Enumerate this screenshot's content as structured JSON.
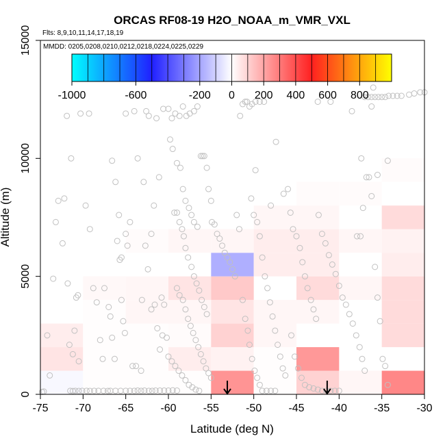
{
  "chart_data": {
    "type": "heatmap",
    "title": "ORCAS RF08-19 H2O_NOAA_m_VMR_VXL",
    "subtitle_flights": "Flts: 8,9,10,11,14,17,18,19",
    "subtitle_dates": "MMDD: 0205,0208,0210,0212,0218,0224,0225,0229",
    "xlabel": "Latitude (deg N)",
    "ylabel": "Altitude (m)",
    "xlim": [
      -75,
      -30
    ],
    "ylim": [
      0,
      15000
    ],
    "x_ticks": [
      "-75",
      "-70",
      "-65",
      "-60",
      "-55",
      "-50",
      "-45",
      "-40",
      "-35",
      "-30"
    ],
    "y_ticks": [
      "0",
      "5000",
      "10000",
      "15000"
    ],
    "colorbar": {
      "range": [
        -1000,
        1000
      ],
      "tick_labels": [
        "-1000",
        "-600",
        "-200",
        "0",
        "200",
        "400",
        "600",
        "800"
      ],
      "tick_values": [
        -1000,
        -600,
        -200,
        0,
        200,
        400,
        600,
        800
      ],
      "stops": [
        "#00ffff",
        "#2020ff",
        "#ffffff",
        "#ff2020",
        "#ffff00"
      ]
    },
    "bin_size": {
      "lat": 5,
      "alt": 1000
    },
    "cells": [
      {
        "lat": -75,
        "alt": 0,
        "value": -15
      },
      {
        "lat": -75,
        "alt": 1000,
        "value": 60
      },
      {
        "lat": -75,
        "alt": 2000,
        "value": 40
      },
      {
        "lat": -70,
        "alt": 0,
        "value": 5
      },
      {
        "lat": -70,
        "alt": 1000,
        "value": 5
      },
      {
        "lat": -70,
        "alt": 2000,
        "value": 5
      },
      {
        "lat": -70,
        "alt": 3000,
        "value": 5
      },
      {
        "lat": -70,
        "alt": 4000,
        "value": 15
      },
      {
        "lat": -65,
        "alt": 0,
        "value": 5
      },
      {
        "lat": -65,
        "alt": 1000,
        "value": 5
      },
      {
        "lat": -65,
        "alt": 2000,
        "value": 5
      },
      {
        "lat": -65,
        "alt": 3000,
        "value": 20
      },
      {
        "lat": -65,
        "alt": 4000,
        "value": 20
      },
      {
        "lat": -65,
        "alt": 6000,
        "value": 10
      },
      {
        "lat": -60,
        "alt": 0,
        "value": 5
      },
      {
        "lat": -60,
        "alt": 1000,
        "value": 40
      },
      {
        "lat": -60,
        "alt": 2000,
        "value": 10
      },
      {
        "lat": -60,
        "alt": 3000,
        "value": 20
      },
      {
        "lat": -60,
        "alt": 4000,
        "value": 60
      },
      {
        "lat": -60,
        "alt": 6000,
        "value": 20
      },
      {
        "lat": -55,
        "alt": 0,
        "value": 240
      },
      {
        "lat": -55,
        "alt": 1000,
        "value": 30
      },
      {
        "lat": -55,
        "alt": 2000,
        "value": 100
      },
      {
        "lat": -55,
        "alt": 3000,
        "value": 60
      },
      {
        "lat": -55,
        "alt": 4000,
        "value": 120
      },
      {
        "lat": -55,
        "alt": 5000,
        "value": -180
      },
      {
        "lat": -55,
        "alt": 6000,
        "value": 20
      },
      {
        "lat": -50,
        "alt": 0,
        "value": 5
      },
      {
        "lat": -50,
        "alt": 1000,
        "value": 5
      },
      {
        "lat": -50,
        "alt": 2000,
        "value": 20
      },
      {
        "lat": -50,
        "alt": 3000,
        "value": 20
      },
      {
        "lat": -50,
        "alt": 5000,
        "value": 40
      },
      {
        "lat": -50,
        "alt": 6000,
        "value": 40
      },
      {
        "lat": -50,
        "alt": 7000,
        "value": 20
      },
      {
        "lat": -45,
        "alt": 0,
        "value": 100
      },
      {
        "lat": -45,
        "alt": 1000,
        "value": 230
      },
      {
        "lat": -45,
        "alt": 3000,
        "value": 20
      },
      {
        "lat": -45,
        "alt": 4000,
        "value": 80
      },
      {
        "lat": -45,
        "alt": 5000,
        "value": 40
      },
      {
        "lat": -45,
        "alt": 6000,
        "value": 40
      },
      {
        "lat": -45,
        "alt": 7000,
        "value": 20
      },
      {
        "lat": -45,
        "alt": 8000,
        "value": 10
      },
      {
        "lat": -40,
        "alt": 0,
        "value": 20
      },
      {
        "lat": -40,
        "alt": 4000,
        "value": 20
      },
      {
        "lat": -40,
        "alt": 6000,
        "value": 20
      },
      {
        "lat": -40,
        "alt": 8000,
        "value": 10
      },
      {
        "lat": -35,
        "alt": 0,
        "value": 270
      },
      {
        "lat": -35,
        "alt": 2000,
        "value": 80
      },
      {
        "lat": -35,
        "alt": 3000,
        "value": 80
      },
      {
        "lat": -35,
        "alt": 4000,
        "value": 80
      },
      {
        "lat": -35,
        "alt": 5000,
        "value": 40
      },
      {
        "lat": -35,
        "alt": 6000,
        "value": 30
      },
      {
        "lat": -35,
        "alt": 7000,
        "value": 80
      },
      {
        "lat": -35,
        "alt": 9000,
        "value": 10
      }
    ],
    "arrows": [
      {
        "lat": -53.1
      },
      {
        "lat": -41.4
      }
    ],
    "points": [
      [
        -74.8,
        100
      ],
      [
        -74.6,
        120
      ],
      [
        -74.2,
        2500
      ],
      [
        -73.9,
        800
      ],
      [
        -73.5,
        4900
      ],
      [
        -73.2,
        7300
      ],
      [
        -72.9,
        8200
      ],
      [
        -72.4,
        6400
      ],
      [
        -72.2,
        8300
      ],
      [
        -71.8,
        4700
      ],
      [
        -71.6,
        2100
      ],
      [
        -71.2,
        1700
      ],
      [
        -71.0,
        2700
      ],
      [
        -70.8,
        4100
      ],
      [
        -70.6,
        4200
      ],
      [
        -70.5,
        1400
      ],
      [
        -70.3,
        11900
      ],
      [
        -71.9,
        11800
      ],
      [
        -69.3,
        11900
      ],
      [
        -71.4,
        10000
      ],
      [
        -71.5,
        150
      ],
      [
        -71.2,
        140
      ],
      [
        -70.9,
        150
      ],
      [
        -70.5,
        145
      ],
      [
        -70.1,
        150
      ],
      [
        -69.6,
        150
      ],
      [
        -69.2,
        145
      ],
      [
        -68.7,
        150
      ],
      [
        -68.2,
        150
      ],
      [
        -67.6,
        150
      ],
      [
        -67.1,
        145
      ],
      [
        -69.7,
        8000
      ],
      [
        -69.2,
        7000
      ],
      [
        -68.8,
        4500
      ],
      [
        -68.4,
        3900
      ],
      [
        -68.0,
        2300
      ],
      [
        -67.7,
        1500
      ],
      [
        -67.5,
        4500
      ],
      [
        -67.0,
        3700
      ],
      [
        -66.8,
        3300
      ],
      [
        -66.6,
        2400
      ],
      [
        -66.3,
        1500
      ],
      [
        -66.0,
        6500
      ],
      [
        -65.7,
        5700
      ],
      [
        -65.5,
        4000
      ],
      [
        -65.3,
        3100
      ],
      [
        -65.1,
        2600
      ],
      [
        -66.6,
        9900
      ],
      [
        -66.2,
        9000
      ],
      [
        -65.8,
        7600
      ],
      [
        -65.5,
        5800
      ],
      [
        -65.0,
        6800
      ],
      [
        -64.8,
        6300
      ],
      [
        -64.5,
        7300
      ],
      [
        -64.2,
        1200
      ],
      [
        -63.8,
        1200
      ],
      [
        -63.2,
        1000
      ],
      [
        -62.9,
        9000
      ],
      [
        -62.6,
        12000
      ],
      [
        -62.3,
        11800
      ],
      [
        -62.0,
        6800
      ],
      [
        -61.7,
        8000
      ],
      [
        -61.4,
        11700
      ],
      [
        -61.1,
        9200
      ],
      [
        -60.8,
        4100
      ],
      [
        -60.5,
        3800
      ],
      [
        -60.2,
        2400
      ],
      [
        -65.0,
        11900
      ],
      [
        -64.0,
        12000
      ],
      [
        -63.6,
        10000
      ],
      [
        -63.1,
        4000
      ],
      [
        -62.7,
        6300
      ],
      [
        -62.4,
        5300
      ],
      [
        -62.0,
        3600
      ],
      [
        -61.6,
        3800
      ],
      [
        -61.3,
        2800
      ],
      [
        -61.0,
        1900
      ],
      [
        -60.7,
        2500
      ],
      [
        -66.8,
        150
      ],
      [
        -66.2,
        150
      ],
      [
        -65.6,
        150
      ],
      [
        -65.0,
        150
      ],
      [
        -64.5,
        150
      ],
      [
        -64.0,
        150
      ],
      [
        -63.6,
        160
      ],
      [
        -63.2,
        150
      ],
      [
        -62.8,
        160
      ],
      [
        -62.3,
        150
      ],
      [
        -61.9,
        150
      ],
      [
        -61.5,
        160
      ],
      [
        -61.0,
        160
      ],
      [
        -60.5,
        160
      ],
      [
        -60.0,
        160
      ],
      [
        -59.5,
        170
      ],
      [
        -59.0,
        160
      ],
      [
        -60.6,
        12100
      ],
      [
        -60.0,
        12100
      ],
      [
        -59.6,
        11700
      ],
      [
        -59.2,
        11900
      ],
      [
        -58.7,
        11800
      ],
      [
        -58.3,
        12200
      ],
      [
        -57.9,
        11800
      ],
      [
        -57.5,
        11900
      ],
      [
        -57.0,
        12000
      ],
      [
        -56.6,
        12200
      ],
      [
        -59.8,
        10800
      ],
      [
        -59.3,
        7700
      ],
      [
        -59.0,
        7700
      ],
      [
        -58.7,
        7300
      ],
      [
        -58.4,
        7000
      ],
      [
        -58.2,
        6700
      ],
      [
        -58.0,
        6200
      ],
      [
        -57.7,
        5800
      ],
      [
        -57.3,
        5400
      ],
      [
        -57.0,
        5000
      ],
      [
        -56.7,
        4700
      ],
      [
        -56.4,
        4400
      ],
      [
        -56.1,
        4000
      ],
      [
        -55.8,
        3700
      ],
      [
        -55.5,
        3400
      ],
      [
        -59.5,
        10400
      ],
      [
        -59.0,
        9800
      ],
      [
        -58.6,
        9600
      ],
      [
        -58.3,
        8700
      ],
      [
        -58.0,
        8200
      ],
      [
        -57.6,
        7900
      ],
      [
        -57.3,
        7600
      ],
      [
        -57.0,
        7300
      ],
      [
        -56.6,
        7100
      ],
      [
        -56.2,
        10100
      ],
      [
        -56.0,
        10100
      ],
      [
        -55.8,
        10100
      ],
      [
        -55.5,
        9600
      ],
      [
        -55.3,
        8700
      ],
      [
        -55.0,
        8200
      ],
      [
        -59.0,
        4500
      ],
      [
        -58.7,
        4200
      ],
      [
        -58.3,
        4000
      ],
      [
        -58.0,
        3600
      ],
      [
        -57.7,
        3200
      ],
      [
        -57.4,
        2900
      ],
      [
        -57.1,
        2600
      ],
      [
        -56.8,
        2300
      ],
      [
        -56.5,
        2000
      ],
      [
        -56.2,
        1700
      ],
      [
        -55.9,
        1400
      ],
      [
        -55.6,
        1100
      ],
      [
        -55.3,
        900
      ],
      [
        -55.0,
        700
      ],
      [
        -60.0,
        1600
      ],
      [
        -59.6,
        1400
      ],
      [
        -59.2,
        1200
      ],
      [
        -58.8,
        1000
      ],
      [
        -58.4,
        800
      ],
      [
        -58.0,
        600
      ],
      [
        -57.6,
        400
      ],
      [
        -57.2,
        300
      ],
      [
        -56.8,
        200
      ],
      [
        -56.4,
        150
      ],
      [
        -54.9,
        7300
      ],
      [
        -54.6,
        7200
      ],
      [
        -54.3,
        6800
      ],
      [
        -54.0,
        6600
      ],
      [
        -53.7,
        6300
      ],
      [
        -53.4,
        6000
      ],
      [
        -53.1,
        5800
      ],
      [
        -52.8,
        5600
      ],
      [
        -52.5,
        5300
      ],
      [
        -52.2,
        5000
      ],
      [
        -52.0,
        7600
      ],
      [
        -51.7,
        7000
      ],
      [
        -51.3,
        4000
      ],
      [
        -51.0,
        3200
      ],
      [
        -50.7,
        2700
      ],
      [
        -50.5,
        2100
      ],
      [
        -50.2,
        1500
      ],
      [
        -49.9,
        1000
      ],
      [
        -49.6,
        700
      ],
      [
        -49.3,
        400
      ],
      [
        -49.0,
        150
      ],
      [
        -48.5,
        150
      ],
      [
        -48.0,
        150
      ],
      [
        -47.5,
        150
      ],
      [
        -51.6,
        11800
      ],
      [
        -51.3,
        12300
      ],
      [
        -51.0,
        12400
      ],
      [
        -50.8,
        12400
      ],
      [
        -50.5,
        12200
      ],
      [
        -50.2,
        12300
      ],
      [
        -49.8,
        12400
      ],
      [
        -49.3,
        12400
      ],
      [
        -48.8,
        12400
      ],
      [
        -50.3,
        8300
      ],
      [
        -50.0,
        7600
      ],
      [
        -49.6,
        7300
      ],
      [
        -49.3,
        6700
      ],
      [
        -49.0,
        5800
      ],
      [
        -48.7,
        5000
      ],
      [
        -48.4,
        4500
      ],
      [
        -48.1,
        3900
      ],
      [
        -47.8,
        3300
      ],
      [
        -47.5,
        2700
      ],
      [
        -47.2,
        2100
      ],
      [
        -46.9,
        1600
      ],
      [
        -46.6,
        1100
      ],
      [
        -46.3,
        800
      ],
      [
        -49.8,
        9500
      ],
      [
        -48.0,
        8000
      ],
      [
        -47.4,
        10700
      ],
      [
        -46.5,
        8500
      ],
      [
        -46.0,
        8700
      ],
      [
        -45.7,
        7700
      ],
      [
        -45.4,
        7000
      ],
      [
        -45.0,
        6700
      ],
      [
        -44.6,
        6200
      ],
      [
        -44.3,
        5600
      ],
      [
        -44.0,
        5000
      ],
      [
        -43.7,
        4500
      ],
      [
        -43.3,
        4000
      ],
      [
        -43.0,
        3600
      ],
      [
        -42.7,
        3200
      ],
      [
        -45.6,
        2500
      ],
      [
        -45.2,
        1600
      ],
      [
        -44.8,
        1100
      ],
      [
        -44.4,
        700
      ],
      [
        -44.0,
        400
      ],
      [
        -43.5,
        300
      ],
      [
        -43.0,
        250
      ],
      [
        -42.5,
        200
      ],
      [
        -42.0,
        150
      ],
      [
        -41.5,
        150
      ],
      [
        -41.0,
        150
      ],
      [
        -40.5,
        150
      ],
      [
        -40.0,
        150
      ],
      [
        -42.4,
        7600
      ],
      [
        -42.0,
        6800
      ],
      [
        -41.6,
        6400
      ],
      [
        -41.2,
        5900
      ],
      [
        -40.8,
        5500
      ],
      [
        -40.4,
        5100
      ],
      [
        -40.0,
        4600
      ],
      [
        -39.6,
        4100
      ],
      [
        -39.2,
        3800
      ],
      [
        -38.8,
        3400
      ],
      [
        -38.4,
        3000
      ],
      [
        -38.0,
        2500
      ],
      [
        -37.6,
        2000
      ],
      [
        -37.3,
        1500
      ],
      [
        -37.0,
        1000
      ],
      [
        -37.9,
        6700
      ],
      [
        -37.5,
        6700
      ],
      [
        -37.2,
        7900
      ],
      [
        -36.8,
        9200
      ],
      [
        -36.5,
        9200
      ],
      [
        -36.2,
        8400
      ],
      [
        -35.8,
        5400
      ],
      [
        -35.5,
        4100
      ],
      [
        -35.2,
        3100
      ],
      [
        -34.9,
        1500
      ],
      [
        -34.6,
        1200
      ],
      [
        -34.3,
        400
      ],
      [
        -37.0,
        12600
      ],
      [
        -36.6,
        12600
      ],
      [
        -36.2,
        12600
      ],
      [
        -35.8,
        12600
      ],
      [
        -35.4,
        12600
      ],
      [
        -35.0,
        12600
      ],
      [
        -34.6,
        12600
      ],
      [
        -34.2,
        12650
      ],
      [
        -33.7,
        12650
      ],
      [
        -33.2,
        12650
      ],
      [
        -32.7,
        12650
      ],
      [
        -31.8,
        12700
      ],
      [
        -31.2,
        12750
      ],
      [
        -30.5,
        12800
      ],
      [
        -30.0,
        12800
      ],
      [
        -36.2,
        12200
      ],
      [
        -42.5,
        12400
      ],
      [
        -41.0,
        12400
      ],
      [
        -38.5,
        12000
      ],
      [
        -36.0,
        13000
      ],
      [
        -34.3,
        9900
      ],
      [
        -35.5,
        9300
      ],
      [
        -37.4,
        10000
      ]
    ]
  }
}
